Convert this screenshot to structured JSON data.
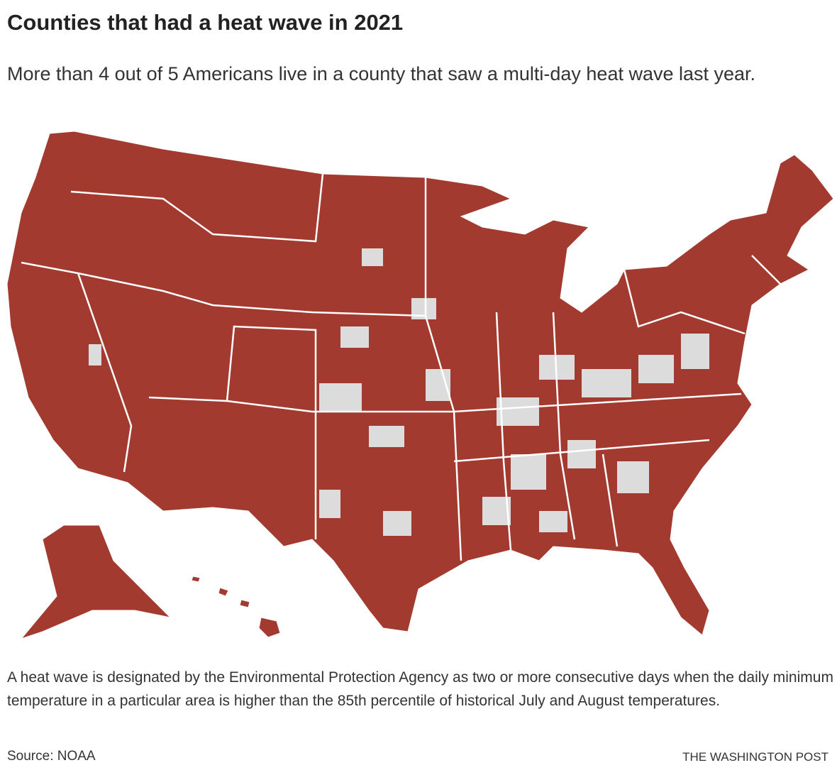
{
  "header": {
    "title": "Counties that had a heat wave in 2021",
    "subtitle": "More than 4 out of 5 Americans live in a county that saw a multi-day heat wave last year."
  },
  "note": "A heat wave is designated by the Environmental Protection Agency as two or more consecutive days when the daily minimum temperature in a particular area is higher than the 85th percentile of historical July and August temperatures.",
  "footer": {
    "source": "Source: NOAA",
    "credit": "THE WASHINGTON POST"
  }
}
